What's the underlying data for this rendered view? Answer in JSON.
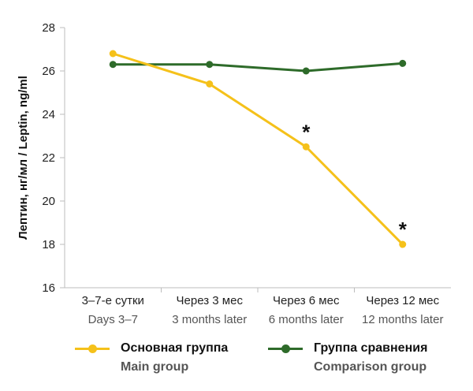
{
  "chart_data": {
    "type": "line",
    "ylabel": "Лептин, нг/мл / Leptin, ng/ml",
    "ylim": [
      16,
      28
    ],
    "yticks": [
      16,
      18,
      20,
      22,
      24,
      26,
      28
    ],
    "grid": false,
    "categories": [
      {
        "ru": "3–7-е сутки",
        "en": "Days 3–7"
      },
      {
        "ru": "Через 3 мес",
        "en": "3 months later"
      },
      {
        "ru": "Через 6 мес",
        "en": "6 months later"
      },
      {
        "ru": "Через 12 мес",
        "en": "12 months later"
      }
    ],
    "series": [
      {
        "name": "Основная группа",
        "name_en": "Main group",
        "color": "#f5c11a",
        "values": [
          26.8,
          25.4,
          22.5,
          18.0
        ],
        "markers": [
          "",
          "",
          "*",
          "*"
        ]
      },
      {
        "name": "Группа сравнения",
        "name_en": "Comparison group",
        "color": "#2e6b2a",
        "values": [
          26.3,
          26.3,
          26.0,
          26.35
        ],
        "markers": [
          "",
          "",
          "",
          ""
        ]
      }
    ],
    "legend_position": "bottom"
  }
}
